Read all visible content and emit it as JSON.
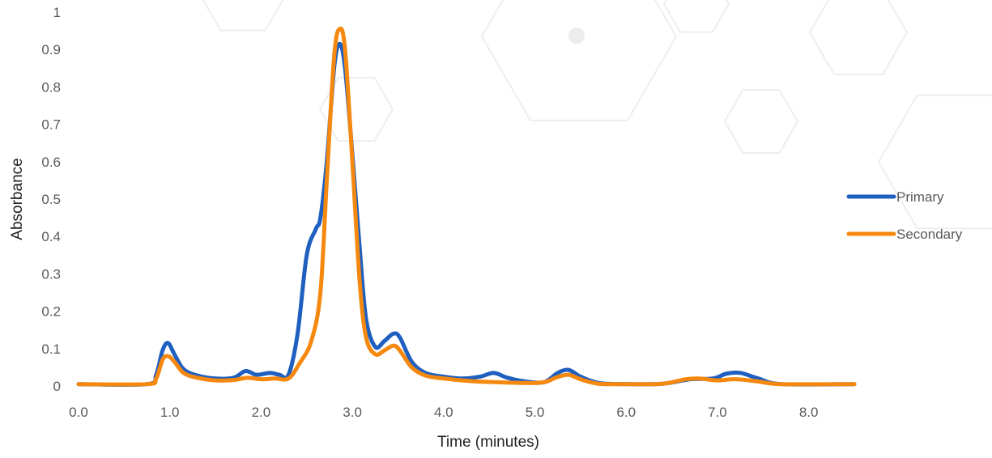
{
  "chart_data": {
    "type": "line",
    "title": "",
    "xlabel": "Time (minutes)",
    "ylabel": "Absorbance",
    "xlim": [
      0,
      8.5
    ],
    "ylim": [
      0,
      1
    ],
    "x_ticks": [
      "0.0",
      "1.0",
      "2.0",
      "3.0",
      "4.0",
      "5.0",
      "6.0",
      "7.0",
      "8.0"
    ],
    "y_ticks": [
      "0",
      "0.1",
      "0.2",
      "0.3",
      "0.4",
      "0.5",
      "0.6",
      "0.7",
      "0.8",
      "0.9",
      "1"
    ],
    "grid": false,
    "legend_position": "right",
    "series": [
      {
        "name": "Primary",
        "color": "#1f5fbf",
        "points": [
          [
            0.0,
            0.005
          ],
          [
            0.75,
            0.005
          ],
          [
            0.85,
            0.03
          ],
          [
            0.92,
            0.095
          ],
          [
            0.98,
            0.115
          ],
          [
            1.05,
            0.085
          ],
          [
            1.15,
            0.045
          ],
          [
            1.3,
            0.028
          ],
          [
            1.5,
            0.02
          ],
          [
            1.7,
            0.022
          ],
          [
            1.83,
            0.04
          ],
          [
            1.95,
            0.03
          ],
          [
            2.1,
            0.035
          ],
          [
            2.2,
            0.03
          ],
          [
            2.3,
            0.03
          ],
          [
            2.4,
            0.14
          ],
          [
            2.5,
            0.35
          ],
          [
            2.6,
            0.42
          ],
          [
            2.65,
            0.45
          ],
          [
            2.72,
            0.6
          ],
          [
            2.8,
            0.85
          ],
          [
            2.86,
            0.915
          ],
          [
            2.92,
            0.85
          ],
          [
            3.0,
            0.62
          ],
          [
            3.08,
            0.37
          ],
          [
            3.15,
            0.18
          ],
          [
            3.25,
            0.105
          ],
          [
            3.35,
            0.12
          ],
          [
            3.45,
            0.14
          ],
          [
            3.52,
            0.13
          ],
          [
            3.65,
            0.065
          ],
          [
            3.8,
            0.035
          ],
          [
            4.0,
            0.025
          ],
          [
            4.2,
            0.02
          ],
          [
            4.4,
            0.025
          ],
          [
            4.55,
            0.035
          ],
          [
            4.7,
            0.022
          ],
          [
            4.9,
            0.012
          ],
          [
            5.1,
            0.01
          ],
          [
            5.25,
            0.035
          ],
          [
            5.37,
            0.043
          ],
          [
            5.5,
            0.025
          ],
          [
            5.7,
            0.008
          ],
          [
            6.0,
            0.005
          ],
          [
            6.4,
            0.006
          ],
          [
            6.7,
            0.018
          ],
          [
            6.95,
            0.02
          ],
          [
            7.1,
            0.033
          ],
          [
            7.25,
            0.035
          ],
          [
            7.45,
            0.02
          ],
          [
            7.7,
            0.005
          ],
          [
            8.5,
            0.005
          ]
        ]
      },
      {
        "name": "Secondary",
        "color": "#f5880f",
        "points": [
          [
            0.0,
            0.005
          ],
          [
            0.75,
            0.005
          ],
          [
            0.85,
            0.02
          ],
          [
            0.92,
            0.07
          ],
          [
            0.98,
            0.08
          ],
          [
            1.05,
            0.065
          ],
          [
            1.15,
            0.035
          ],
          [
            1.3,
            0.022
          ],
          [
            1.5,
            0.015
          ],
          [
            1.7,
            0.016
          ],
          [
            1.85,
            0.022
          ],
          [
            2.0,
            0.018
          ],
          [
            2.15,
            0.02
          ],
          [
            2.3,
            0.02
          ],
          [
            2.42,
            0.06
          ],
          [
            2.55,
            0.12
          ],
          [
            2.65,
            0.25
          ],
          [
            2.72,
            0.55
          ],
          [
            2.8,
            0.88
          ],
          [
            2.86,
            0.955
          ],
          [
            2.92,
            0.9
          ],
          [
            3.0,
            0.6
          ],
          [
            3.08,
            0.28
          ],
          [
            3.15,
            0.13
          ],
          [
            3.25,
            0.085
          ],
          [
            3.35,
            0.095
          ],
          [
            3.45,
            0.108
          ],
          [
            3.52,
            0.095
          ],
          [
            3.65,
            0.05
          ],
          [
            3.8,
            0.028
          ],
          [
            4.0,
            0.02
          ],
          [
            4.3,
            0.013
          ],
          [
            4.6,
            0.01
          ],
          [
            4.9,
            0.008
          ],
          [
            5.1,
            0.01
          ],
          [
            5.25,
            0.024
          ],
          [
            5.37,
            0.03
          ],
          [
            5.5,
            0.018
          ],
          [
            5.7,
            0.006
          ],
          [
            6.0,
            0.005
          ],
          [
            6.4,
            0.006
          ],
          [
            6.65,
            0.018
          ],
          [
            6.8,
            0.02
          ],
          [
            7.0,
            0.015
          ],
          [
            7.2,
            0.018
          ],
          [
            7.45,
            0.012
          ],
          [
            7.7,
            0.005
          ],
          [
            8.5,
            0.005
          ]
        ]
      }
    ]
  }
}
